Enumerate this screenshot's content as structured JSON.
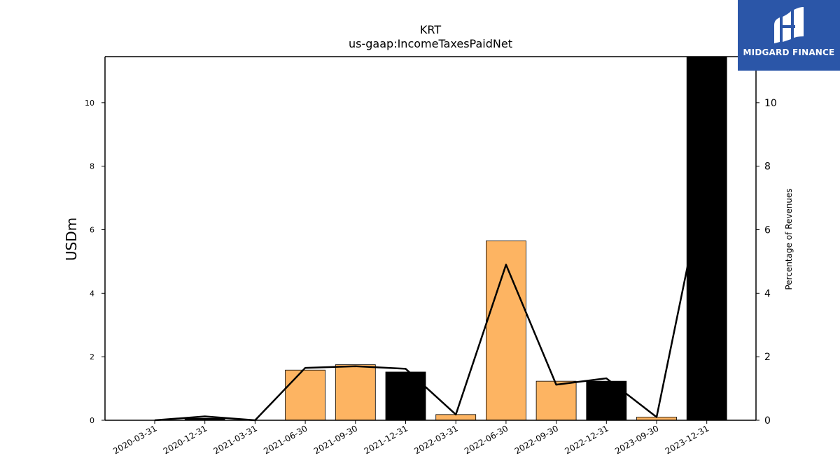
{
  "chart_data": {
    "type": "bar",
    "title": "KRT",
    "subtitle": "us-gaap:IncomeTaxesPaidNet",
    "ylabel": "USDm",
    "y2label": "Percentage of Revenues",
    "categories": [
      "2020-03-31",
      "2020-12-31",
      "2021-03-31",
      "2021-06-30",
      "2021-09-30",
      "2021-12-31",
      "2022-03-31",
      "2022-06-30",
      "2022-09-30",
      "2022-12-31",
      "2023-09-30",
      "2023-12-31"
    ],
    "series": [
      {
        "type": "bar",
        "values": [
          0,
          0.06,
          0,
          1.58,
          1.75,
          1.52,
          0.18,
          5.65,
          1.23,
          1.23,
          0.1,
          11.5
        ],
        "colors": [
          "#000000",
          "#000000",
          "#000000",
          "#fdb462",
          "#fdb462",
          "#000000",
          "#fdb462",
          "#fdb462",
          "#fdb462",
          "#000000",
          "#fdb462",
          "#000000"
        ]
      },
      {
        "type": "line",
        "axis": "right",
        "values": [
          0,
          0.12,
          0,
          1.65,
          1.7,
          1.62,
          0.18,
          4.9,
          1.12,
          1.32,
          0.1,
          7.8
        ],
        "color": "#000000"
      }
    ],
    "ylim": [
      0,
      11.45
    ],
    "y2lim": [
      0,
      11.45
    ],
    "yticks": [
      0,
      2,
      4,
      6,
      8,
      10
    ],
    "y2ticks": [
      0,
      2,
      4,
      6,
      8,
      10
    ],
    "grid": false,
    "legend": "none"
  },
  "logo": {
    "text": "MIDGARD FINANCE",
    "color": "#2b56a8"
  }
}
